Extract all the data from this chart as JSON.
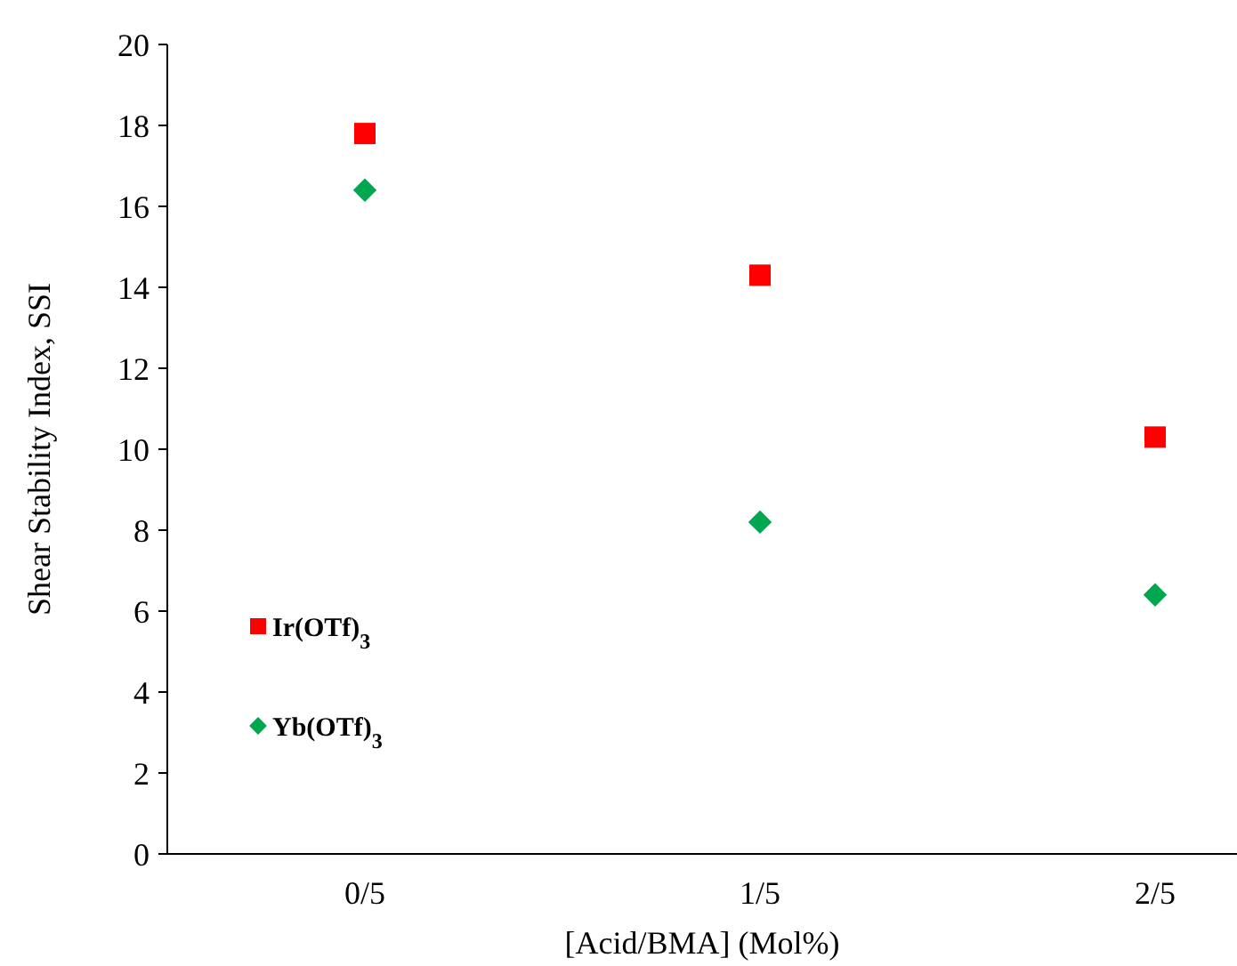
{
  "chart_data": {
    "type": "scatter",
    "xlabel": "[Acid/BMA] (Mol%)",
    "ylabel": "Shear Stability Index, SSI",
    "categories": [
      "0/5",
      "1/5",
      "2/5"
    ],
    "series": [
      {
        "name": "Ir(OTf)$_{3}$",
        "color": "#ff0000",
        "marker": "square",
        "values": [
          17.8,
          14.3,
          10.3
        ]
      },
      {
        "name": "Yb(OTf)$_{3}$",
        "color": "#00a650",
        "marker": "diamond",
        "values": [
          16.4,
          8.2,
          6.4
        ]
      }
    ],
    "ylim": [
      0,
      20
    ],
    "yticks": [
      0,
      2,
      4,
      6,
      8,
      10,
      12,
      14,
      16,
      18,
      20
    ],
    "grid": false,
    "legend": "left"
  }
}
